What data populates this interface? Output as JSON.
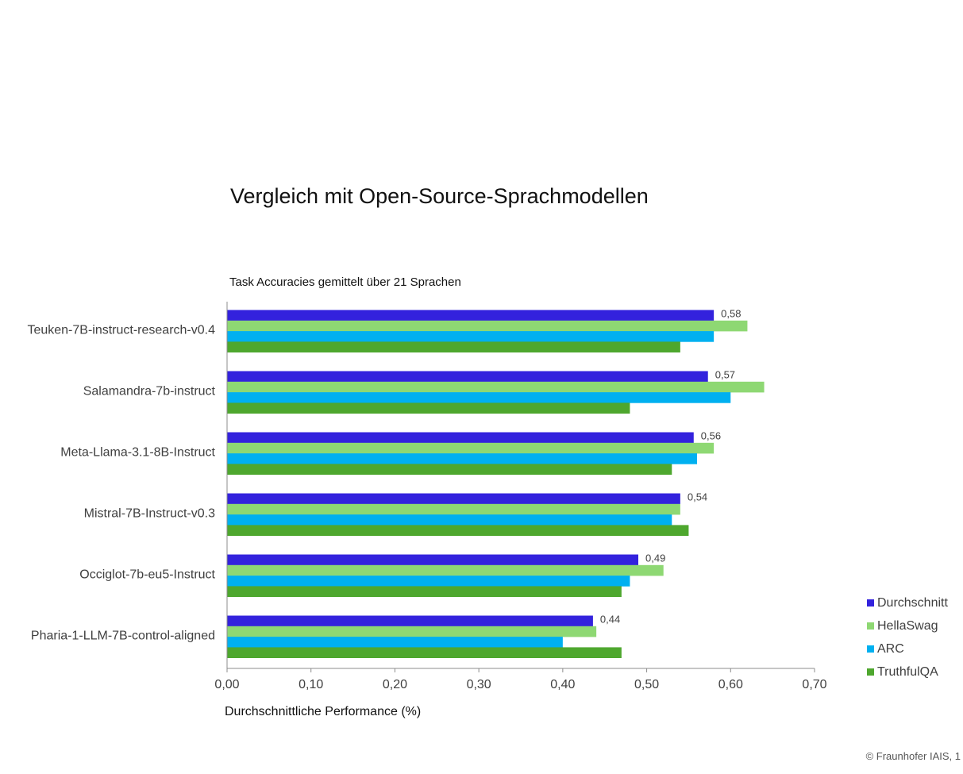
{
  "chart_data": {
    "type": "bar",
    "orientation": "horizontal",
    "title": "Vergleich mit Open-Source-Sprachmodellen",
    "subtitle": "Task Accuracies gemittelt über 21 Sprachen",
    "xlabel": "Durchschnittliche Performance (%)",
    "ylabel": "",
    "xlim": [
      0,
      0.7
    ],
    "x_ticks": [
      "0,00",
      "0,10",
      "0,20",
      "0,30",
      "0,40",
      "0,50",
      "0,60",
      "0,70"
    ],
    "grid": false,
    "legend_position": "bottom-right",
    "categories": [
      "Teuken-7B-instruct-research-v0.4",
      "Salamandra-7b-instruct",
      "Meta-Llama-3.1-8B-Instruct",
      "Mistral-7B-Instruct-v0.3",
      "Occiglot-7b-eu5-Instruct",
      "Pharia-1-LLM-7B-control-aligned"
    ],
    "series": [
      {
        "name": "Durchschnitt",
        "color": "#3322dd",
        "values": [
          0.58,
          0.573,
          0.556,
          0.54,
          0.49,
          0.436
        ],
        "data_labels": [
          "0,58",
          "0,57",
          "0,56",
          "0,54",
          "0,49",
          "0,44"
        ]
      },
      {
        "name": "HellaSwag",
        "color": "#8ed873",
        "values": [
          0.62,
          0.64,
          0.58,
          0.54,
          0.52,
          0.44
        ]
      },
      {
        "name": "ARC",
        "color": "#00b0f0",
        "values": [
          0.58,
          0.6,
          0.56,
          0.53,
          0.48,
          0.4
        ]
      },
      {
        "name": "TruthfulQA",
        "color": "#4ea72e",
        "values": [
          0.54,
          0.48,
          0.53,
          0.55,
          0.47,
          0.47
        ]
      }
    ]
  },
  "footer": "© Fraunhofer IAIS, 1"
}
